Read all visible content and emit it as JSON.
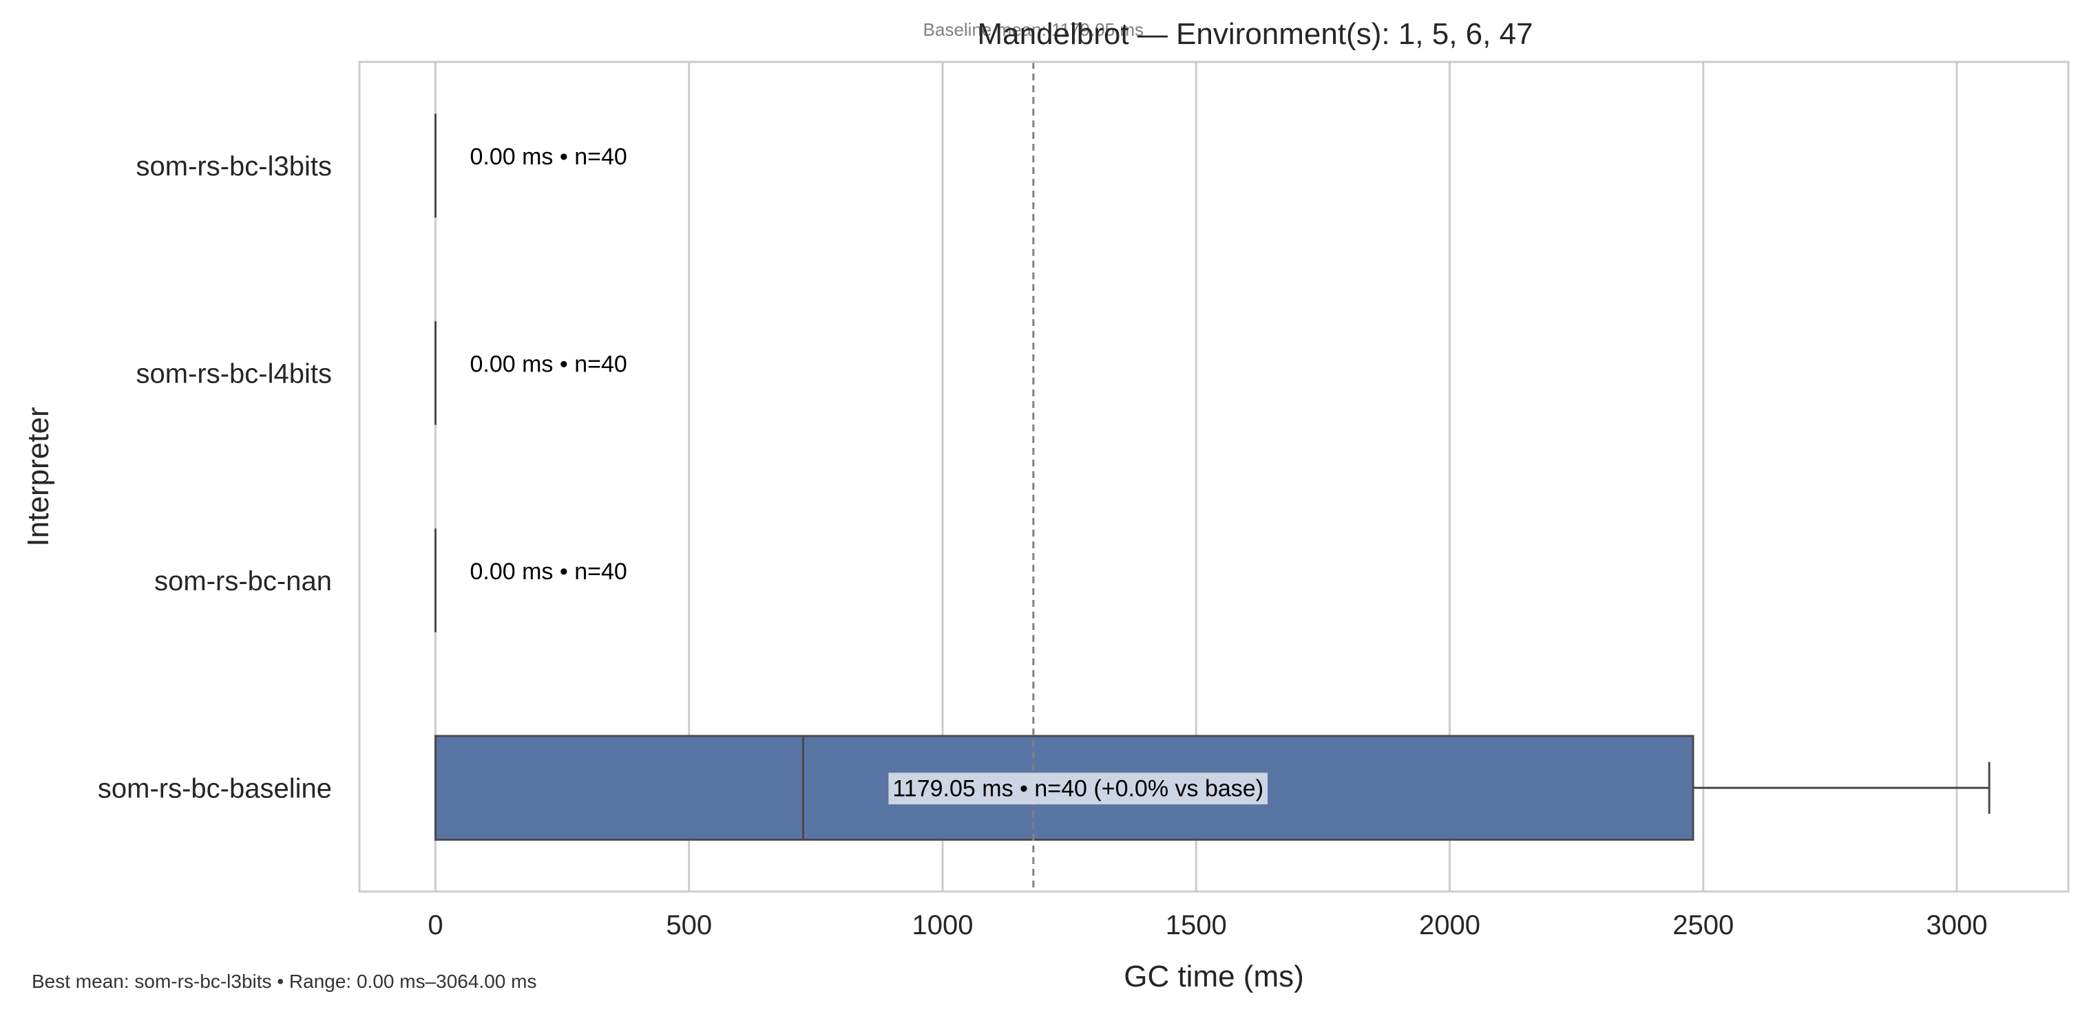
{
  "chart_data": {
    "type": "boxplot",
    "orientation": "horizontal",
    "title": "Mandelbrot — Environment(s): 1, 5, 6, 47",
    "subtitle": "Baseline mean: 1179.05 ms",
    "xlabel": "GC time (ms)",
    "ylabel": "Interpreter",
    "xlim": [
      -150,
      3220
    ],
    "xticks": [
      0,
      500,
      1000,
      1500,
      2000,
      2500,
      3000
    ],
    "x_tick_labels": [
      "0",
      "500",
      "1000",
      "1500",
      "2000",
      "2500",
      "3000"
    ],
    "grid": "vertical",
    "baseline_line": {
      "value": 1179.05,
      "style": "dashed"
    },
    "categories": [
      "som-rs-bc-l3bits",
      "som-rs-bc-l4bits",
      "som-rs-bc-nan",
      "som-rs-bc-baseline"
    ],
    "boxes": [
      {
        "name": "som-rs-bc-l3bits",
        "min": 0,
        "q1": 0,
        "median": 0,
        "q3": 0,
        "max": 0,
        "label": "0.00 ms • n=40"
      },
      {
        "name": "som-rs-bc-l4bits",
        "min": 0,
        "q1": 0,
        "median": 0,
        "q3": 0,
        "max": 0,
        "label": "0.00 ms • n=40"
      },
      {
        "name": "som-rs-bc-nan",
        "min": 0,
        "q1": 0,
        "median": 0,
        "q3": 0,
        "max": 0,
        "label": "0.00 ms • n=40"
      },
      {
        "name": "som-rs-bc-baseline",
        "min": 0,
        "q1": 0,
        "median": 725,
        "q3": 2480,
        "max": 3064,
        "label": "1179.05 ms • n=40 (+0.0% vs base)"
      }
    ],
    "box_color": "#5975a4",
    "footer": "Best mean: som-rs-bc-l3bits • Range: 0.00 ms–3064.00 ms"
  }
}
